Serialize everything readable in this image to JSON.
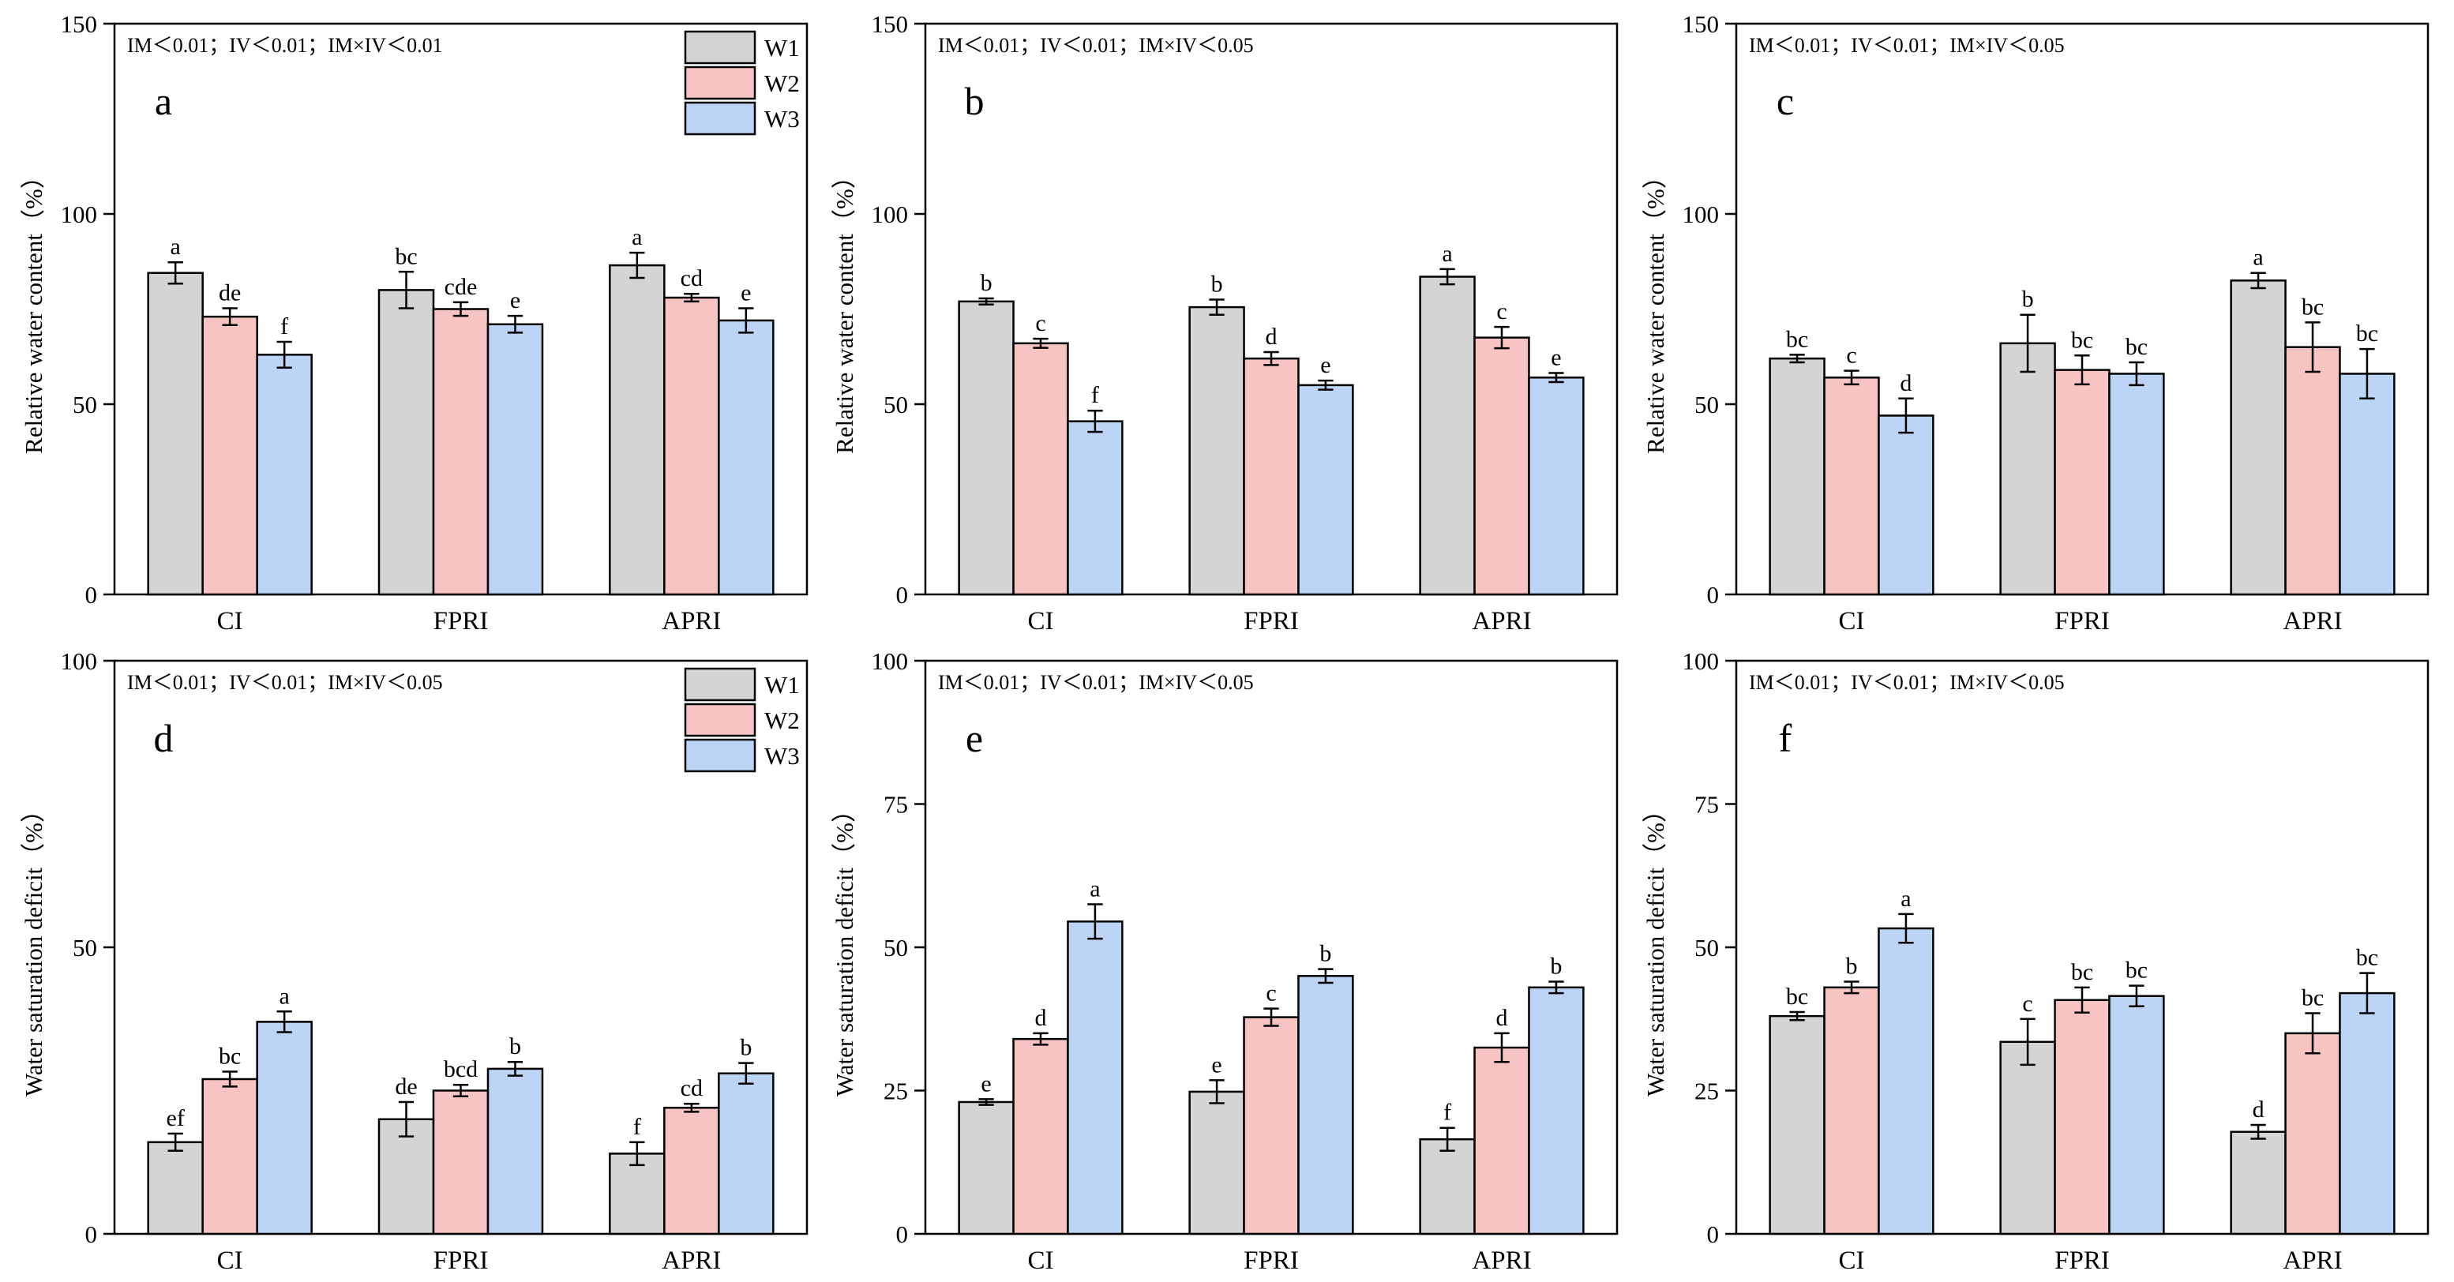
{
  "chart_data": {
    "series_meta": [
      {
        "name": "W1",
        "color": "#d4d4d4"
      },
      {
        "name": "W2",
        "color": "#f7c3c3"
      },
      {
        "name": "W3",
        "color": "#bcd5f6"
      }
    ],
    "panels": [
      {
        "id": "a",
        "type": "bar",
        "letter": "a",
        "stats": "IM＜0.01；IV＜0.01；IM×IV＜0.01",
        "ylabel": "Relative water content（%）",
        "ylim": [
          0,
          150
        ],
        "yticks": [
          0,
          50,
          100,
          150
        ],
        "categories": [
          "CI",
          "FPRI",
          "APRI"
        ],
        "legend": true,
        "series": [
          {
            "name": "W1",
            "values": [
              84.5,
              80.0,
              86.5
            ],
            "errors": [
              2.8,
              4.8,
              3.3
            ],
            "labels": [
              "a",
              "bc",
              "a"
            ]
          },
          {
            "name": "W2",
            "values": [
              73.0,
              75.0,
              78.0
            ],
            "errors": [
              2.2,
              1.8,
              1.0
            ],
            "labels": [
              "de",
              "cde",
              "cd"
            ]
          },
          {
            "name": "W3",
            "values": [
              63.0,
              71.0,
              72.0
            ],
            "errors": [
              3.4,
              2.2,
              3.2
            ],
            "labels": [
              "f",
              "e",
              "e"
            ]
          }
        ]
      },
      {
        "id": "b",
        "type": "bar",
        "letter": "b",
        "stats": "IM＜0.01；IV＜0.01；IM×IV＜0.05",
        "ylabel": "Relative water content（%）",
        "ylim": [
          0,
          150
        ],
        "yticks": [
          0,
          50,
          100,
          150
        ],
        "categories": [
          "CI",
          "FPRI",
          "APRI"
        ],
        "legend": false,
        "series": [
          {
            "name": "W1",
            "values": [
              77.0,
              75.5,
              83.5
            ],
            "errors": [
              0.8,
              2.0,
              2.0
            ],
            "labels": [
              "b",
              "b",
              "a"
            ]
          },
          {
            "name": "W2",
            "values": [
              66.0,
              62.0,
              67.5
            ],
            "errors": [
              1.2,
              1.7,
              2.8
            ],
            "labels": [
              "c",
              "d",
              "c"
            ]
          },
          {
            "name": "W3",
            "values": [
              45.5,
              55.0,
              57.0
            ],
            "errors": [
              2.8,
              1.2,
              1.2
            ],
            "labels": [
              "f",
              "e",
              "e"
            ]
          }
        ]
      },
      {
        "id": "c",
        "type": "bar",
        "letter": "c",
        "stats": "IM＜0.01；IV＜0.01；IM×IV＜0.05",
        "ylabel": "Relative water content（%）",
        "ylim": [
          0,
          150
        ],
        "yticks": [
          0,
          50,
          100,
          150
        ],
        "categories": [
          "CI",
          "FPRI",
          "APRI"
        ],
        "legend": false,
        "series": [
          {
            "name": "W1",
            "values": [
              62.0,
              66.0,
              82.5
            ],
            "errors": [
              1.0,
              7.5,
              2.0
            ],
            "labels": [
              "bc",
              "b",
              "a"
            ]
          },
          {
            "name": "W2",
            "values": [
              57.0,
              59.0,
              65.0
            ],
            "errors": [
              1.8,
              3.8,
              6.5
            ],
            "labels": [
              "c",
              "bc",
              "bc"
            ]
          },
          {
            "name": "W3",
            "values": [
              47.0,
              58.0,
              58.0
            ],
            "errors": [
              4.5,
              3.0,
              6.5
            ],
            "labels": [
              "d",
              "bc",
              "bc"
            ]
          }
        ]
      },
      {
        "id": "d",
        "type": "bar",
        "letter": "d",
        "stats": "IM＜0.01；IV＜0.01；IM×IV＜0.05",
        "ylabel": "Water saturation deficit（%）",
        "ylim": [
          0,
          100
        ],
        "yticks": [
          0,
          50,
          100
        ],
        "categories": [
          "CI",
          "FPRI",
          "APRI"
        ],
        "legend": true,
        "series": [
          {
            "name": "W1",
            "values": [
              16.0,
              20.0,
              14.0
            ],
            "errors": [
              1.5,
              3.0,
              2.0
            ],
            "labels": [
              "ef",
              "de",
              "f"
            ]
          },
          {
            "name": "W2",
            "values": [
              27.0,
              25.0,
              22.0
            ],
            "errors": [
              1.3,
              1.0,
              0.7
            ],
            "labels": [
              "bc",
              "bcd",
              "cd"
            ]
          },
          {
            "name": "W3",
            "values": [
              37.0,
              28.8,
              28.0
            ],
            "errors": [
              1.8,
              1.2,
              1.8
            ],
            "labels": [
              "a",
              "b",
              "b"
            ]
          }
        ]
      },
      {
        "id": "e",
        "type": "bar",
        "letter": "e",
        "stats": "IM＜0.01；IV＜0.01；IM×IV＜0.05",
        "ylabel": "Water saturation deficit（%）",
        "ylim": [
          0,
          100
        ],
        "yticks": [
          0,
          25,
          50,
          75,
          100
        ],
        "categories": [
          "CI",
          "FPRI",
          "APRI"
        ],
        "legend": false,
        "series": [
          {
            "name": "W1",
            "values": [
              23.0,
              24.8,
              16.5
            ],
            "errors": [
              0.5,
              2.0,
              2.0
            ],
            "labels": [
              "e",
              "e",
              "f"
            ]
          },
          {
            "name": "W2",
            "values": [
              34.0,
              37.8,
              32.5
            ],
            "errors": [
              1.0,
              1.5,
              2.5
            ],
            "labels": [
              "d",
              "c",
              "d"
            ]
          },
          {
            "name": "W3",
            "values": [
              54.5,
              45.0,
              43.0
            ],
            "errors": [
              3.0,
              1.2,
              1.0
            ],
            "labels": [
              "a",
              "b",
              "b"
            ]
          }
        ]
      },
      {
        "id": "f",
        "type": "bar",
        "letter": "f",
        "stats": "IM＜0.01；IV＜0.01；IM×IV＜0.05",
        "ylabel": "Water saturation deficit（%）",
        "ylim": [
          0,
          100
        ],
        "yticks": [
          0,
          25,
          50,
          75,
          100
        ],
        "categories": [
          "CI",
          "FPRI",
          "APRI"
        ],
        "legend": false,
        "series": [
          {
            "name": "W1",
            "values": [
              38.0,
              33.5,
              17.8
            ],
            "errors": [
              0.7,
              4.0,
              1.2
            ],
            "labels": [
              "bc",
              "c",
              "d"
            ]
          },
          {
            "name": "W2",
            "values": [
              43.0,
              40.8,
              35.0
            ],
            "errors": [
              1.0,
              2.2,
              3.5
            ],
            "labels": [
              "b",
              "bc",
              "bc"
            ]
          },
          {
            "name": "W3",
            "values": [
              53.3,
              41.5,
              42.0
            ],
            "errors": [
              2.5,
              1.8,
              3.5
            ],
            "labels": [
              "a",
              "bc",
              "bc"
            ]
          }
        ]
      }
    ]
  }
}
